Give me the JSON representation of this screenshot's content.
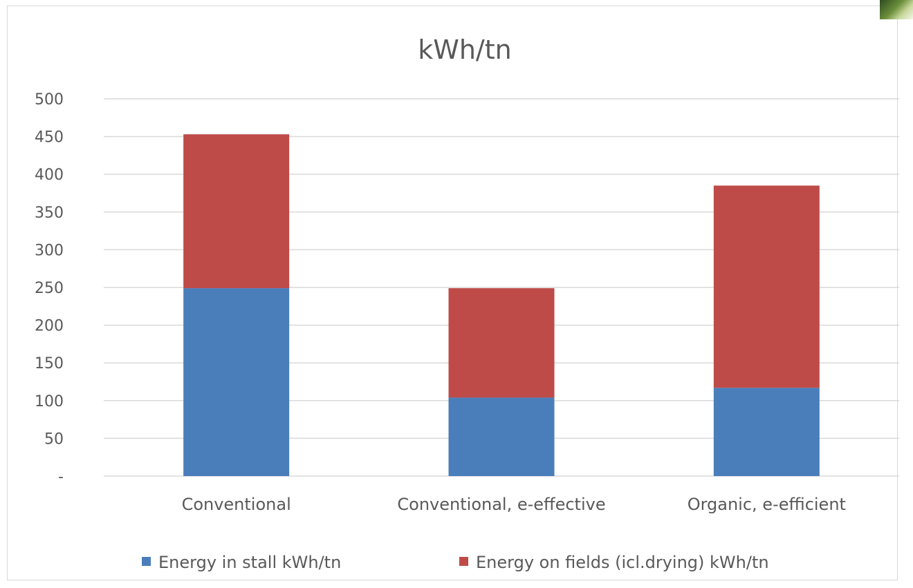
{
  "chart_data": {
    "type": "bar",
    "stacked": true,
    "title": "kWh/tn",
    "xlabel": "",
    "ylabel": "",
    "categories": [
      "Conventional",
      "Conventional, e-effective",
      "Organic, e-efficient"
    ],
    "series": [
      {
        "name": "Energy in stall  kWh/tn",
        "color": "#4a7ebb",
        "values": [
          249,
          104,
          117
        ]
      },
      {
        "name": "Energy on fields (icl.drying) kWh/tn",
        "color": "#be4b48",
        "values": [
          204,
          145,
          268
        ]
      }
    ],
    "ylim": [
      0,
      500
    ],
    "yticks": [
      "-",
      "50",
      "100",
      "150",
      "200",
      "250",
      "300",
      "350",
      "400",
      "450",
      "500"
    ],
    "ytick_values": [
      0,
      50,
      100,
      150,
      200,
      250,
      300,
      350,
      400,
      450,
      500
    ],
    "grid": true,
    "legend_position": "bottom"
  },
  "colors": {
    "gridline": "#d9d9d9",
    "text": "#595959",
    "border": "#d9d9d9"
  }
}
